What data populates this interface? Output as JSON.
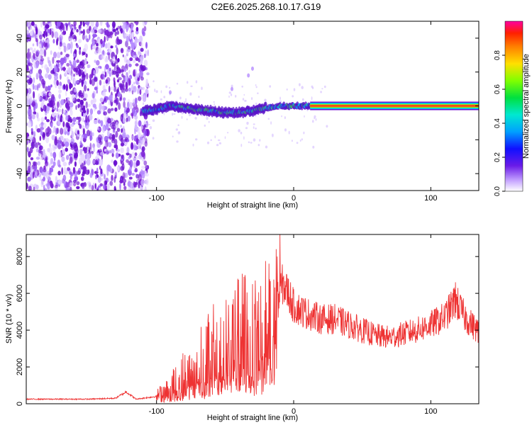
{
  "title": "C2E6.2025.268.10.17.G19",
  "colors": {
    "snr_line": "#ee3333",
    "spec_low": "#7b1fd6",
    "spec_ridge": "#f02a1a"
  },
  "chart_data": [
    {
      "type": "heatmap",
      "name": "spectrogram",
      "xlabel": "Height of straight line (km)",
      "ylabel": "Frequency (Hz)",
      "xlim": [
        -195,
        135
      ],
      "ylim": [
        -50,
        50
      ],
      "x_ticks": [
        -100,
        0,
        100
      ],
      "x_tick_labels": [
        "-100",
        "0",
        "100"
      ],
      "y_ticks": [
        -40,
        -20,
        0,
        20,
        40
      ],
      "y_tick_labels": [
        "-40",
        "-20",
        "0",
        "20",
        "40"
      ],
      "ridge_center_hz": [
        [
          -110,
          -3
        ],
        [
          -100,
          -2
        ],
        [
          -90,
          0
        ],
        [
          -80,
          -1
        ],
        [
          -70,
          -2
        ],
        [
          -60,
          -3
        ],
        [
          -50,
          -4
        ],
        [
          -40,
          -4
        ],
        [
          -30,
          -3
        ],
        [
          -20,
          -1
        ],
        [
          -10,
          0
        ],
        [
          0,
          0
        ],
        [
          10,
          0
        ],
        [
          20,
          0
        ],
        [
          135,
          0
        ]
      ],
      "noise_region_km": [
        -195,
        -110
      ]
    },
    {
      "type": "colorbar",
      "name": "amplitude-colorbar",
      "label": "Normalized spectral amplitude",
      "range": [
        0,
        1
      ],
      "ticks": [
        0.0,
        0.2,
        0.4,
        0.6,
        0.8
      ],
      "tick_labels": [
        "0.0",
        "0.2",
        "0.4",
        "0.6",
        "0.8"
      ]
    },
    {
      "type": "line",
      "name": "snr",
      "xlabel": "Height of straight line (km)",
      "ylabel": "SNR (10 * v/v)",
      "xlim": [
        -195,
        135
      ],
      "ylim": [
        0,
        9200
      ],
      "x_ticks": [
        -100,
        0,
        100
      ],
      "x_tick_labels": [
        "-100",
        "0",
        "100"
      ],
      "y_ticks": [
        0,
        2000,
        4000,
        6000,
        8000
      ],
      "y_tick_labels": [
        "0",
        "2000",
        "4000",
        "6000",
        "8000"
      ],
      "envelope": [
        [
          -195,
          250
        ],
        [
          -150,
          250
        ],
        [
          -130,
          300
        ],
        [
          -122,
          650
        ],
        [
          -115,
          250
        ],
        [
          -100,
          400
        ],
        [
          -90,
          900
        ],
        [
          -80,
          1600
        ],
        [
          -70,
          2300
        ],
        [
          -60,
          2800
        ],
        [
          -50,
          3200
        ],
        [
          -40,
          3700
        ],
        [
          -30,
          4200
        ],
        [
          -20,
          4600
        ],
        [
          -15,
          3500
        ],
        [
          -12,
          5500
        ],
        [
          -8,
          6500
        ],
        [
          -5,
          6200
        ],
        [
          0,
          5300
        ],
        [
          10,
          4900
        ],
        [
          20,
          4600
        ],
        [
          30,
          4600
        ],
        [
          40,
          4300
        ],
        [
          50,
          4000
        ],
        [
          60,
          3700
        ],
        [
          70,
          3600
        ],
        [
          80,
          3800
        ],
        [
          90,
          4000
        ],
        [
          100,
          4300
        ],
        [
          110,
          4700
        ],
        [
          118,
          5600
        ],
        [
          125,
          4700
        ],
        [
          135,
          3900
        ]
      ],
      "spikes": [
        [
          -10,
          9200
        ],
        [
          -12,
          8000
        ],
        [
          -5,
          7000
        ],
        [
          118,
          6600
        ],
        [
          -30,
          6500
        ],
        [
          -28,
          6700
        ]
      ]
    }
  ]
}
